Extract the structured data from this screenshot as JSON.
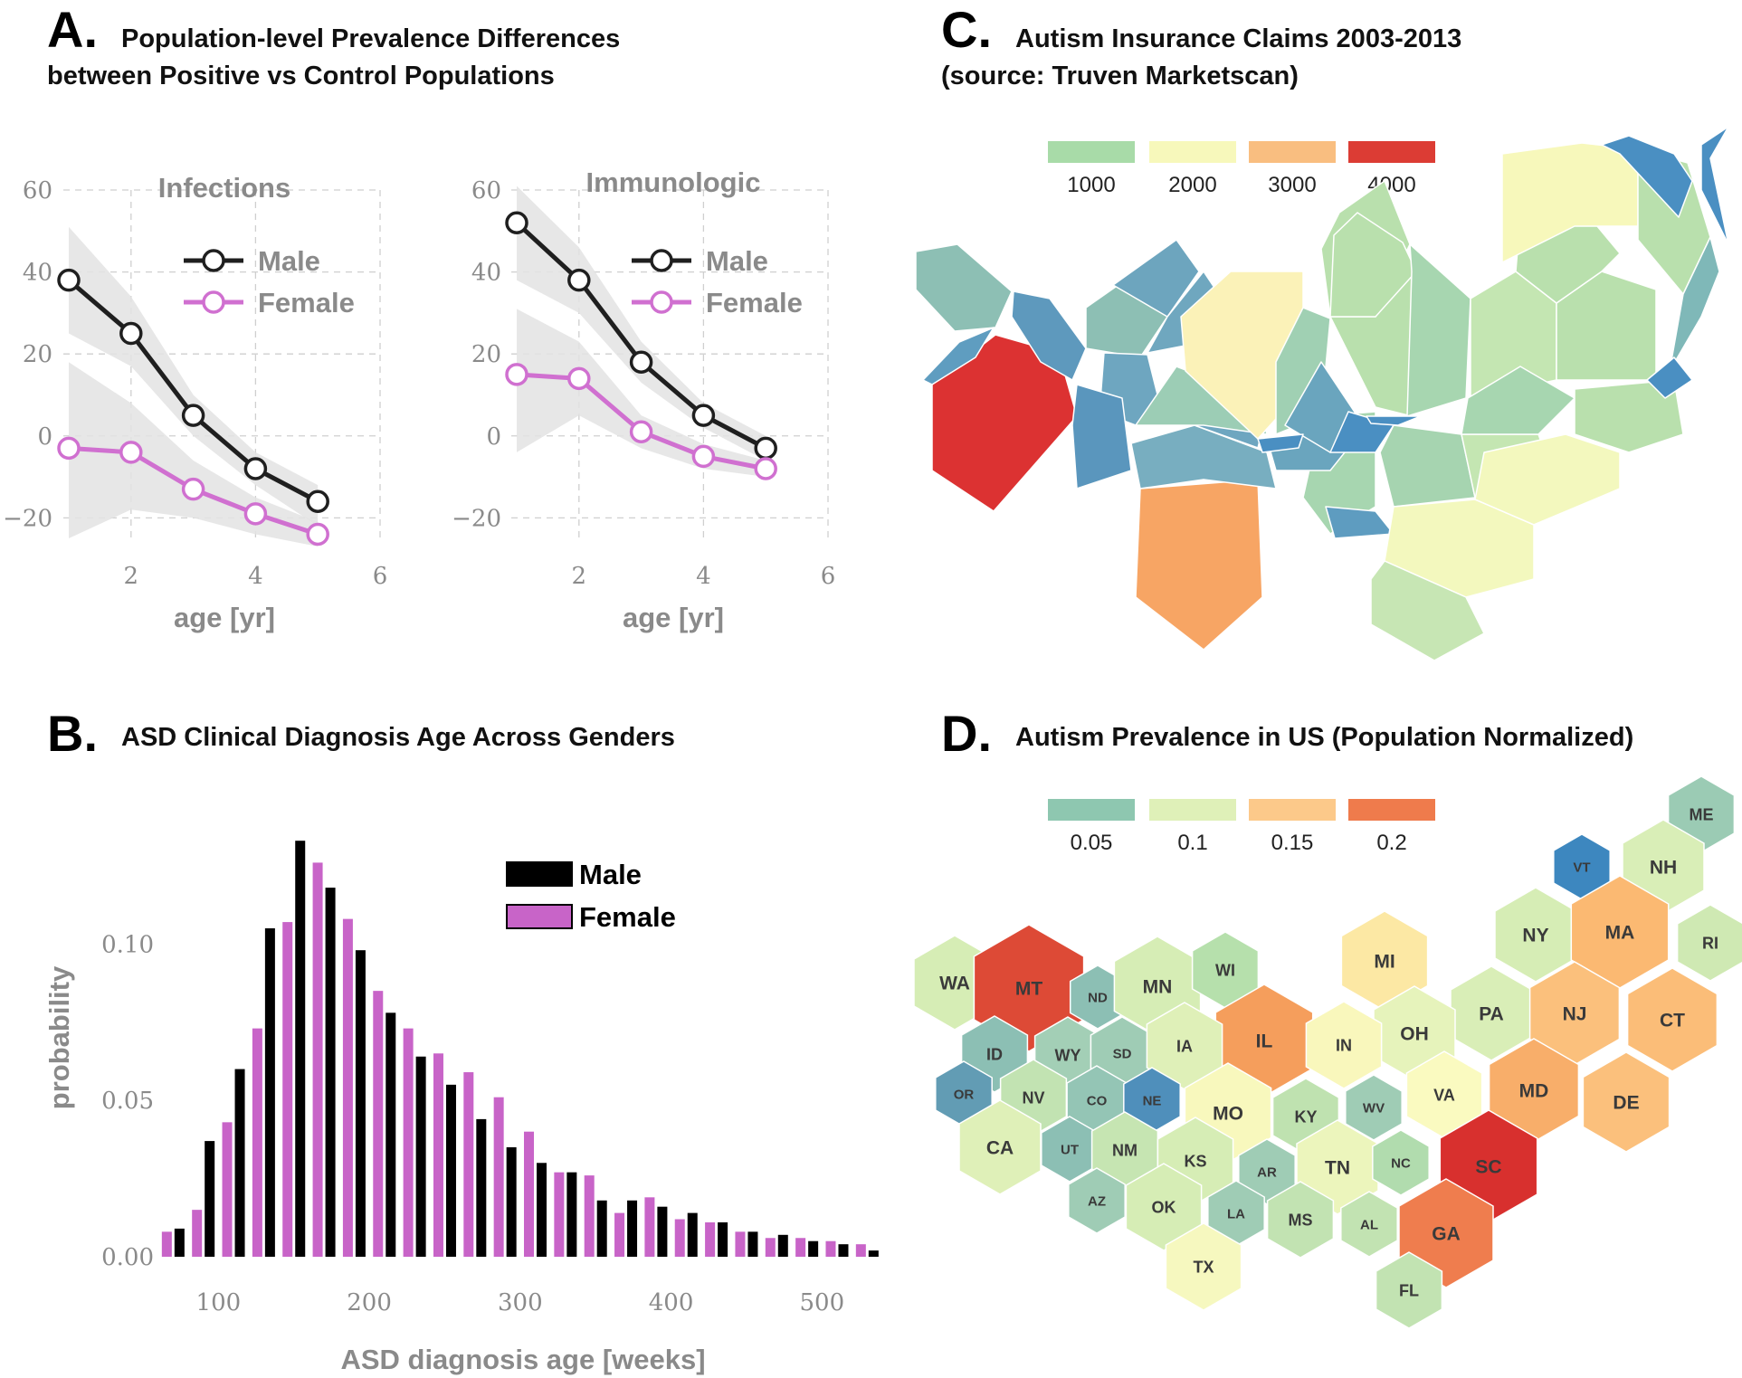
{
  "panels": {
    "A": {
      "letter": "A.",
      "title_line1": "Population-level Prevalence Differences",
      "title_line2": "between Positive vs Control Populations"
    },
    "B": {
      "letter": "B.",
      "title": "ASD Clinical Diagnosis Age Across Genders"
    },
    "C": {
      "letter": "C.",
      "title_line1": "Autism Insurance Claims 2003-2013",
      "title_line2": "(source: Truven Marketscan)"
    },
    "D": {
      "letter": "D.",
      "title": "Autism Prevalence in US (Population Normalized)"
    }
  },
  "colors": {
    "male": "#1f1f1f",
    "female": "#d070d0",
    "band": "#e3e3e3",
    "bar_female": "#c864c8",
    "bar_male": "#000000"
  },
  "chart_data": [
    {
      "type": "line",
      "title": "Infections",
      "xlabel": "age [yr]",
      "ylabel": "",
      "xlim": [
        1,
        6
      ],
      "ylim": [
        -25,
        60
      ],
      "x_ticks": [
        "2",
        "4",
        "6"
      ],
      "y_ticks": [
        "60",
        "40",
        "20",
        "0",
        "−20"
      ],
      "grid": true,
      "legend": "top-right",
      "series": [
        {
          "name": "Male",
          "x": [
            1,
            2,
            3,
            4,
            5
          ],
          "y": [
            38,
            25,
            5,
            -8,
            -16
          ],
          "band_low": [
            25,
            17,
            0,
            -12,
            -22
          ],
          "band_high": [
            51,
            34,
            10,
            -4,
            -12
          ]
        },
        {
          "name": "Female",
          "x": [
            1,
            2,
            3,
            4,
            5
          ],
          "y": [
            -3,
            -4,
            -13,
            -19,
            -24
          ],
          "band_low": [
            -25,
            -18,
            -20,
            -24,
            -27
          ],
          "band_high": [
            18,
            8,
            -6,
            -15,
            -21
          ]
        }
      ]
    },
    {
      "type": "line",
      "title": "Immunologic",
      "xlabel": "age [yr]",
      "ylabel": "",
      "xlim": [
        1,
        6
      ],
      "ylim": [
        -25,
        60
      ],
      "x_ticks": [
        "2",
        "4",
        "6"
      ],
      "y_ticks": [
        "60",
        "40",
        "20",
        "0",
        "−20"
      ],
      "grid": true,
      "legend": "top-right",
      "series": [
        {
          "name": "Male",
          "x": [
            1,
            2,
            3,
            4,
            5
          ],
          "y": [
            52,
            38,
            18,
            5,
            -3
          ],
          "band_low": [
            38,
            30,
            13,
            2,
            -6
          ],
          "band_high": [
            61,
            46,
            23,
            8,
            0
          ]
        },
        {
          "name": "Female",
          "x": [
            1,
            2,
            3,
            4,
            5
          ],
          "y": [
            15,
            14,
            1,
            -5,
            -8
          ],
          "band_low": [
            -4,
            5,
            -3,
            -8,
            -10
          ],
          "band_high": [
            31,
            23,
            5,
            -2,
            -6
          ]
        }
      ]
    },
    {
      "type": "bar",
      "title": "",
      "xlabel": "ASD diagnosis age [weeks]",
      "ylabel": "probability",
      "xlim": [
        62,
        540
      ],
      "ylim": [
        0,
        0.14
      ],
      "x_ticks": [
        "100",
        "200",
        "300",
        "400",
        "500"
      ],
      "y_ticks": [
        "0.00",
        "0.05",
        "0.10"
      ],
      "legend": "top-right",
      "bin_centers": [
        70,
        90,
        110,
        130,
        150,
        170,
        190,
        210,
        230,
        250,
        270,
        290,
        310,
        330,
        350,
        370,
        390,
        410,
        430,
        450,
        470,
        490,
        510,
        530
      ],
      "series": [
        {
          "name": "Male",
          "values": [
            0.009,
            0.037,
            0.06,
            0.105,
            0.133,
            0.118,
            0.098,
            0.078,
            0.064,
            0.055,
            0.044,
            0.035,
            0.03,
            0.027,
            0.018,
            0.018,
            0.016,
            0.014,
            0.011,
            0.008,
            0.007,
            0.005,
            0.004,
            0.002
          ]
        },
        {
          "name": "Female",
          "values": [
            0.008,
            0.015,
            0.043,
            0.073,
            0.107,
            0.126,
            0.108,
            0.085,
            0.073,
            0.065,
            0.059,
            0.051,
            0.04,
            0.027,
            0.026,
            0.014,
            0.019,
            0.012,
            0.011,
            0.008,
            0.006,
            0.006,
            0.005,
            0.004
          ]
        }
      ]
    },
    {
      "type": "heatmap",
      "title": "Autism Insurance Claims 2003-2013",
      "legend": "top",
      "scale": [
        {
          "label": "1000",
          "color": "#a8dba8"
        },
        {
          "label": "2000",
          "color": "#f7f8bb"
        },
        {
          "label": "3000",
          "color": "#f9be80"
        },
        {
          "label": "4000",
          "color": "#dc3c34"
        }
      ]
    },
    {
      "type": "heatmap",
      "title": "Autism Prevalence in US (Population Normalized)",
      "legend": "top",
      "scale": [
        {
          "label": "0.05",
          "color": "#8ec7b0"
        },
        {
          "label": "0.1",
          "color": "#dff0b8"
        },
        {
          "label": "0.15",
          "color": "#fcc98a"
        },
        {
          "label": "0.2",
          "color": "#ef7b4c"
        }
      ],
      "states": [
        {
          "code": "ME",
          "color": "#9bcbb4"
        },
        {
          "code": "VT",
          "color": "#3d87bf"
        },
        {
          "code": "NH",
          "color": "#d9eeb7"
        },
        {
          "code": "NY",
          "color": "#d6edb5"
        },
        {
          "code": "MA",
          "color": "#fbb972"
        },
        {
          "code": "RI",
          "color": "#cfe9b3"
        },
        {
          "code": "PA",
          "color": "#d9eeb7"
        },
        {
          "code": "NJ",
          "color": "#fbc07c"
        },
        {
          "code": "CT",
          "color": "#fbbd78"
        },
        {
          "code": "MI",
          "color": "#fce8a4"
        },
        {
          "code": "OH",
          "color": "#e6f3bb"
        },
        {
          "code": "MD",
          "color": "#f8ae6a"
        },
        {
          "code": "DE",
          "color": "#fbc07c"
        },
        {
          "code": "WA",
          "color": "#d6edb5"
        },
        {
          "code": "MT",
          "color": "#dd4a36"
        },
        {
          "code": "ND",
          "color": "#8cbfb4"
        },
        {
          "code": "MN",
          "color": "#d6edb5"
        },
        {
          "code": "WI",
          "color": "#b6e0ac"
        },
        {
          "code": "IL",
          "color": "#f59e5c"
        },
        {
          "code": "IN",
          "color": "#f9f7bc"
        },
        {
          "code": "ID",
          "color": "#8cbfb4"
        },
        {
          "code": "WY",
          "color": "#a3cfb6"
        },
        {
          "code": "SD",
          "color": "#9fccb5"
        },
        {
          "code": "IA",
          "color": "#dff0b8"
        },
        {
          "code": "OR",
          "color": "#629cb4"
        },
        {
          "code": "NV",
          "color": "#c2e3b2"
        },
        {
          "code": "CO",
          "color": "#94c5b5"
        },
        {
          "code": "NE",
          "color": "#4f8fbb"
        },
        {
          "code": "MO",
          "color": "#f8f8bd"
        },
        {
          "code": "KY",
          "color": "#bfe2b0"
        },
        {
          "code": "WV",
          "color": "#9fccb5"
        },
        {
          "code": "VA",
          "color": "#fafac0"
        },
        {
          "code": "CA",
          "color": "#dff0b8"
        },
        {
          "code": "UT",
          "color": "#8cbfb4"
        },
        {
          "code": "NM",
          "color": "#c6e5b2"
        },
        {
          "code": "KS",
          "color": "#d6edb5"
        },
        {
          "code": "AR",
          "color": "#9fccb5"
        },
        {
          "code": "TN",
          "color": "#ecf5bc"
        },
        {
          "code": "NC",
          "color": "#b1dcae"
        },
        {
          "code": "SC",
          "color": "#d8302e"
        },
        {
          "code": "AZ",
          "color": "#9fccb5"
        },
        {
          "code": "OK",
          "color": "#d6edb5"
        },
        {
          "code": "LA",
          "color": "#9fccb5"
        },
        {
          "code": "MS",
          "color": "#c2e3b2"
        },
        {
          "code": "AL",
          "color": "#c2e3b2"
        },
        {
          "code": "GA",
          "color": "#ef7d4e"
        },
        {
          "code": "TX",
          "color": "#f6f8bf"
        },
        {
          "code": "FL",
          "color": "#c2e3b2"
        }
      ]
    }
  ]
}
